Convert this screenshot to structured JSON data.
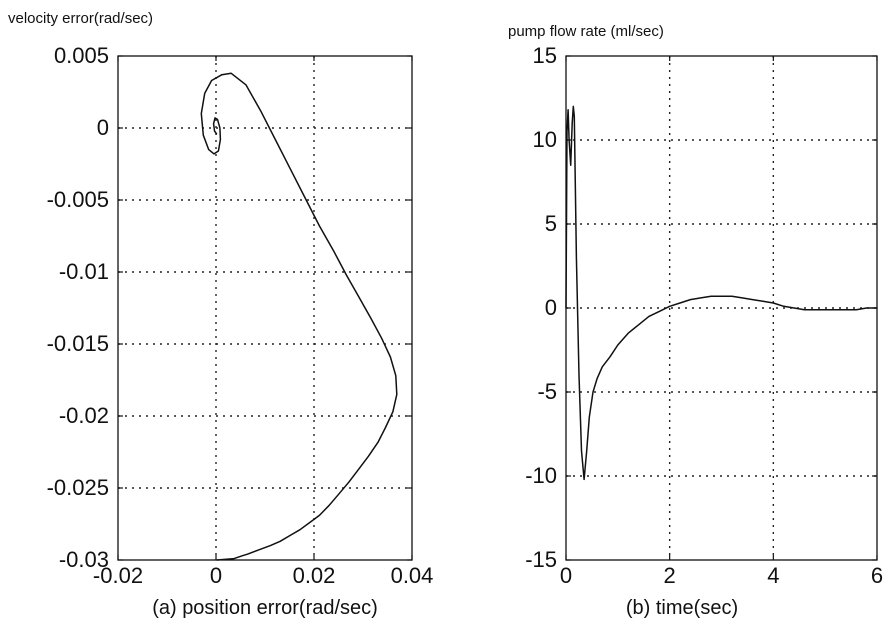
{
  "chart_data": [
    {
      "type": "line",
      "panel_id": "a",
      "ylabel": "velocity error(rad/sec)",
      "xlabel": "(a)  position error(rad/sec)",
      "xlim": [
        -0.02,
        0.04
      ],
      "ylim": [
        -0.03,
        0.005
      ],
      "x_ticks": [
        -0.02,
        0,
        0.02,
        0.04
      ],
      "x_tick_labels": [
        "-0.02",
        "0",
        "0.02",
        "0.04"
      ],
      "y_ticks": [
        0.005,
        0,
        -0.005,
        -0.01,
        -0.015,
        -0.02,
        -0.025,
        -0.03
      ],
      "y_tick_labels": [
        "0.005",
        "0",
        "-0.005",
        "-0.01",
        "-0.015",
        "-0.02",
        "-0.025",
        "-0.03"
      ],
      "grid": true,
      "series": [
        {
          "x": [
            0.0002,
            0.0037,
            0.0054,
            0.0064,
            0.0087,
            0.0111,
            0.0131,
            0.0151,
            0.0171,
            0.0191,
            0.0211,
            0.0231,
            0.0251,
            0.0271,
            0.0291,
            0.0311,
            0.0331,
            0.0346,
            0.0361,
            0.0369,
            0.0367,
            0.0356,
            0.0338,
            0.0316,
            0.0291,
            0.0266,
            0.0241,
            0.0211,
            0.0181,
            0.0151,
            0.0121,
            0.0091,
            0.0061,
            0.0031,
            0.0012
          ],
          "y": [
            -0.03,
            -0.0299,
            -0.0297,
            -0.0296,
            -0.0293,
            -0.029,
            -0.0287,
            -0.0283,
            -0.0279,
            -0.0274,
            -0.0269,
            -0.0262,
            -0.0254,
            -0.0246,
            -0.0237,
            -0.0228,
            -0.0218,
            -0.0208,
            -0.0197,
            -0.0185,
            -0.0172,
            -0.0159,
            -0.0146,
            -0.0132,
            -0.0117,
            -0.0102,
            -0.0086,
            -0.0068,
            -0.0048,
            -0.0028,
            -0.0008,
            0.0012,
            0.003,
            0.0038,
            0.0037
          ]
        },
        {
          "x": [
            0.0012,
            -0.0009,
            -0.0023,
            -0.003,
            -0.0026,
            -0.0015,
            -0.0004,
            0.0005,
            0.0009,
            0.0008,
            0.0003,
            -0.0002,
            -0.0005,
            -0.0003,
            0.0001
          ],
          "y": [
            0.0037,
            0.0033,
            0.0024,
            0.001,
            -0.0005,
            -0.0015,
            -0.0018,
            -0.0016,
            -0.0008,
            0.0,
            0.0006,
            0.0007,
            0.0003,
            -0.0002,
            -0.0004
          ]
        }
      ]
    },
    {
      "type": "line",
      "panel_id": "b",
      "ylabel": "pump flow rate (ml/sec)",
      "xlabel": "(b)  time(sec)",
      "xlim": [
        0,
        6
      ],
      "ylim": [
        -15,
        15
      ],
      "x_ticks": [
        0,
        2,
        4,
        6
      ],
      "x_tick_labels": [
        "0",
        "2",
        "4",
        "6"
      ],
      "y_ticks": [
        15,
        10,
        5,
        0,
        -5,
        -10,
        -15
      ],
      "y_tick_labels": [
        "15",
        "10",
        "5",
        "0",
        "-5",
        "-10",
        "-15"
      ],
      "grid": true,
      "series": [
        {
          "x": [
            0.0,
            0.02,
            0.04,
            0.06,
            0.09,
            0.12,
            0.14,
            0.16,
            0.2,
            0.25,
            0.3,
            0.35,
            0.4,
            0.45,
            0.52,
            0.6,
            0.7,
            0.85,
            1.0,
            1.2,
            1.4,
            1.6,
            1.8,
            2.0,
            2.2,
            2.4,
            2.6,
            2.8,
            3.0,
            3.2,
            3.4,
            3.6,
            3.8,
            4.0,
            4.2,
            4.4,
            4.6,
            4.8,
            5.0,
            5.2,
            5.4,
            5.6,
            5.8,
            6.0
          ],
          "y": [
            0.0,
            10.5,
            11.8,
            10.0,
            8.5,
            11.0,
            12.0,
            11.4,
            3.0,
            -4.0,
            -8.5,
            -10.2,
            -8.5,
            -6.5,
            -5.0,
            -4.2,
            -3.5,
            -2.9,
            -2.2,
            -1.5,
            -1.0,
            -0.5,
            -0.2,
            0.1,
            0.3,
            0.5,
            0.6,
            0.7,
            0.7,
            0.7,
            0.6,
            0.5,
            0.4,
            0.3,
            0.1,
            0.0,
            -0.1,
            -0.1,
            -0.1,
            -0.1,
            -0.1,
            -0.1,
            0.0,
            0.0
          ]
        }
      ]
    }
  ]
}
